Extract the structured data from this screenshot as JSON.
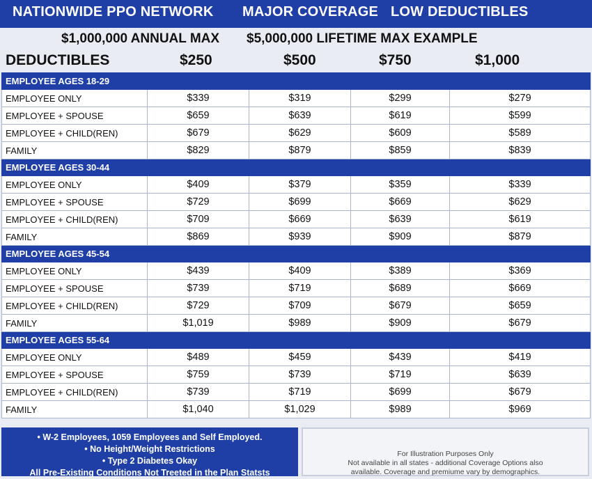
{
  "header": {
    "title_1": "NATIONWIDE PPO NETWORK",
    "title_2": "MAJOR COVERAGE",
    "title_3": "LOW DEDUCTIBLES",
    "annual_max": "$1,000,000 ANNUAL MAX",
    "lifetime_max": "$5,000,000 LIFETIME MAX EXAMPLE"
  },
  "deductibles": {
    "label": "DEDUCTIBLES",
    "columns": [
      "$250",
      "$500",
      "$750",
      "$1,000"
    ]
  },
  "groups": [
    {
      "title": "EMPLOYEE AGES 18-29",
      "rows": [
        {
          "label": "EMPLOYEE ONLY",
          "values": [
            "$339",
            "$319",
            "$299",
            "$279"
          ]
        },
        {
          "label": "EMPLOYEE + SPOUSE",
          "values": [
            "$659",
            "$639",
            "$619",
            "$599"
          ]
        },
        {
          "label": "EMPLOYEE + CHILD(REN)",
          "values": [
            "$679",
            "$629",
            "$609",
            "$589"
          ]
        },
        {
          "label": "FAMILY",
          "values": [
            "$829",
            "$879",
            "$859",
            "$839"
          ]
        }
      ]
    },
    {
      "title": "EMPLOYEE AGES 30-44",
      "rows": [
        {
          "label": "EMPLOYEE ONLY",
          "values": [
            "$409",
            "$379",
            "$359",
            "$339"
          ]
        },
        {
          "label": "EMPLOYEE + SPOUSE",
          "values": [
            "$729",
            "$699",
            "$669",
            "$629"
          ]
        },
        {
          "label": "EMPLOYEE + CHILD(REN)",
          "values": [
            "$709",
            "$669",
            "$639",
            "$619"
          ]
        },
        {
          "label": "FAMILY",
          "values": [
            "$869",
            "$939",
            "$909",
            "$879"
          ]
        }
      ]
    },
    {
      "title": "EMPLOYEE AGES 45-54",
      "rows": [
        {
          "label": "EMPLOYEE ONLY",
          "values": [
            "$439",
            "$409",
            "$389",
            "$369"
          ]
        },
        {
          "label": "EMPLOYEE + SPOUSE",
          "values": [
            "$739",
            "$719",
            "$689",
            "$669"
          ]
        },
        {
          "label": "EMPLOYEE + CHILD(REN)",
          "values": [
            "$729",
            "$709",
            "$679",
            "$659"
          ]
        },
        {
          "label": "FAMILY",
          "values": [
            "$1,019",
            "$989",
            "$909",
            "$679"
          ]
        }
      ]
    },
    {
      "title": "EMPLOYEE AGES 55-64",
      "rows": [
        {
          "label": "EMPLOYEE ONLY",
          "values": [
            "$489",
            "$459",
            "$439",
            "$419"
          ]
        },
        {
          "label": "EMPLOYEE + SPOUSE",
          "values": [
            "$759",
            "$739",
            "$719",
            "$639"
          ]
        },
        {
          "label": "EMPLOYEE + CHILD(REN)",
          "values": [
            "$739",
            "$719",
            "$699",
            "$679"
          ]
        },
        {
          "label": "FAMILY",
          "values": [
            "$1,040",
            "$1,029",
            "$989",
            "$969"
          ]
        }
      ]
    }
  ],
  "footer": {
    "bullets": [
      "• W-2 Employees, 1059 Employees and Self Employed.",
      "• No Height/Weight Restrictions",
      "• Type 2 Diabetes Okay",
      "All Pre-Existing Conditions Not Treeted in the Plan Statsts"
    ],
    "disclaimer": [
      "For Illustration Purposes Only",
      "Not available in all states - additional Coverage Options also",
      "available. Coverage and premiume vary by demographics."
    ]
  },
  "colors": {
    "band_blue": "#1f3fa6",
    "background": "#e9ecf3"
  }
}
